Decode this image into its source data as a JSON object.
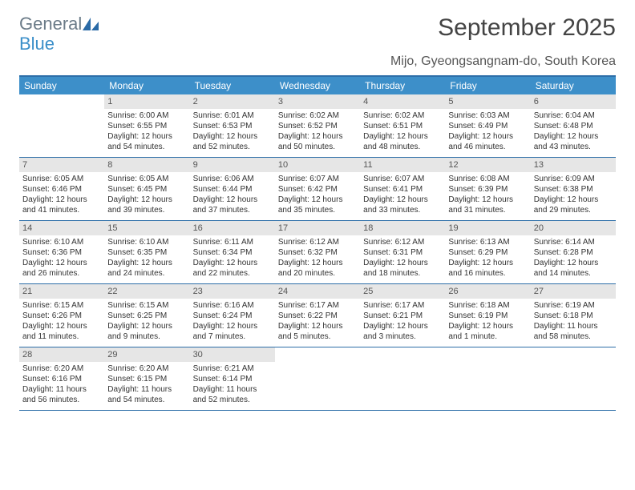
{
  "brand": {
    "word1": "General",
    "word2": "Blue",
    "word1_color": "#6b7b88",
    "word2_color": "#3b8fc9",
    "mark_color": "#2a6aa6"
  },
  "title": "September 2025",
  "subtitle": "Mijo, Gyeongsangnam-do, South Korea",
  "colors": {
    "header_bg": "#3d8fc9",
    "border": "#2d6ea8",
    "daynum_bg": "#e6e6e6",
    "text": "#333333"
  },
  "day_headers": [
    "Sunday",
    "Monday",
    "Tuesday",
    "Wednesday",
    "Thursday",
    "Friday",
    "Saturday"
  ],
  "weeks": [
    [
      {
        "num": "",
        "sunrise": "",
        "sunset": "",
        "daylight": ""
      },
      {
        "num": "1",
        "sunrise": "Sunrise: 6:00 AM",
        "sunset": "Sunset: 6:55 PM",
        "daylight": "Daylight: 12 hours and 54 minutes."
      },
      {
        "num": "2",
        "sunrise": "Sunrise: 6:01 AM",
        "sunset": "Sunset: 6:53 PM",
        "daylight": "Daylight: 12 hours and 52 minutes."
      },
      {
        "num": "3",
        "sunrise": "Sunrise: 6:02 AM",
        "sunset": "Sunset: 6:52 PM",
        "daylight": "Daylight: 12 hours and 50 minutes."
      },
      {
        "num": "4",
        "sunrise": "Sunrise: 6:02 AM",
        "sunset": "Sunset: 6:51 PM",
        "daylight": "Daylight: 12 hours and 48 minutes."
      },
      {
        "num": "5",
        "sunrise": "Sunrise: 6:03 AM",
        "sunset": "Sunset: 6:49 PM",
        "daylight": "Daylight: 12 hours and 46 minutes."
      },
      {
        "num": "6",
        "sunrise": "Sunrise: 6:04 AM",
        "sunset": "Sunset: 6:48 PM",
        "daylight": "Daylight: 12 hours and 43 minutes."
      }
    ],
    [
      {
        "num": "7",
        "sunrise": "Sunrise: 6:05 AM",
        "sunset": "Sunset: 6:46 PM",
        "daylight": "Daylight: 12 hours and 41 minutes."
      },
      {
        "num": "8",
        "sunrise": "Sunrise: 6:05 AM",
        "sunset": "Sunset: 6:45 PM",
        "daylight": "Daylight: 12 hours and 39 minutes."
      },
      {
        "num": "9",
        "sunrise": "Sunrise: 6:06 AM",
        "sunset": "Sunset: 6:44 PM",
        "daylight": "Daylight: 12 hours and 37 minutes."
      },
      {
        "num": "10",
        "sunrise": "Sunrise: 6:07 AM",
        "sunset": "Sunset: 6:42 PM",
        "daylight": "Daylight: 12 hours and 35 minutes."
      },
      {
        "num": "11",
        "sunrise": "Sunrise: 6:07 AM",
        "sunset": "Sunset: 6:41 PM",
        "daylight": "Daylight: 12 hours and 33 minutes."
      },
      {
        "num": "12",
        "sunrise": "Sunrise: 6:08 AM",
        "sunset": "Sunset: 6:39 PM",
        "daylight": "Daylight: 12 hours and 31 minutes."
      },
      {
        "num": "13",
        "sunrise": "Sunrise: 6:09 AM",
        "sunset": "Sunset: 6:38 PM",
        "daylight": "Daylight: 12 hours and 29 minutes."
      }
    ],
    [
      {
        "num": "14",
        "sunrise": "Sunrise: 6:10 AM",
        "sunset": "Sunset: 6:36 PM",
        "daylight": "Daylight: 12 hours and 26 minutes."
      },
      {
        "num": "15",
        "sunrise": "Sunrise: 6:10 AM",
        "sunset": "Sunset: 6:35 PM",
        "daylight": "Daylight: 12 hours and 24 minutes."
      },
      {
        "num": "16",
        "sunrise": "Sunrise: 6:11 AM",
        "sunset": "Sunset: 6:34 PM",
        "daylight": "Daylight: 12 hours and 22 minutes."
      },
      {
        "num": "17",
        "sunrise": "Sunrise: 6:12 AM",
        "sunset": "Sunset: 6:32 PM",
        "daylight": "Daylight: 12 hours and 20 minutes."
      },
      {
        "num": "18",
        "sunrise": "Sunrise: 6:12 AM",
        "sunset": "Sunset: 6:31 PM",
        "daylight": "Daylight: 12 hours and 18 minutes."
      },
      {
        "num": "19",
        "sunrise": "Sunrise: 6:13 AM",
        "sunset": "Sunset: 6:29 PM",
        "daylight": "Daylight: 12 hours and 16 minutes."
      },
      {
        "num": "20",
        "sunrise": "Sunrise: 6:14 AM",
        "sunset": "Sunset: 6:28 PM",
        "daylight": "Daylight: 12 hours and 14 minutes."
      }
    ],
    [
      {
        "num": "21",
        "sunrise": "Sunrise: 6:15 AM",
        "sunset": "Sunset: 6:26 PM",
        "daylight": "Daylight: 12 hours and 11 minutes."
      },
      {
        "num": "22",
        "sunrise": "Sunrise: 6:15 AM",
        "sunset": "Sunset: 6:25 PM",
        "daylight": "Daylight: 12 hours and 9 minutes."
      },
      {
        "num": "23",
        "sunrise": "Sunrise: 6:16 AM",
        "sunset": "Sunset: 6:24 PM",
        "daylight": "Daylight: 12 hours and 7 minutes."
      },
      {
        "num": "24",
        "sunrise": "Sunrise: 6:17 AM",
        "sunset": "Sunset: 6:22 PM",
        "daylight": "Daylight: 12 hours and 5 minutes."
      },
      {
        "num": "25",
        "sunrise": "Sunrise: 6:17 AM",
        "sunset": "Sunset: 6:21 PM",
        "daylight": "Daylight: 12 hours and 3 minutes."
      },
      {
        "num": "26",
        "sunrise": "Sunrise: 6:18 AM",
        "sunset": "Sunset: 6:19 PM",
        "daylight": "Daylight: 12 hours and 1 minute."
      },
      {
        "num": "27",
        "sunrise": "Sunrise: 6:19 AM",
        "sunset": "Sunset: 6:18 PM",
        "daylight": "Daylight: 11 hours and 58 minutes."
      }
    ],
    [
      {
        "num": "28",
        "sunrise": "Sunrise: 6:20 AM",
        "sunset": "Sunset: 6:16 PM",
        "daylight": "Daylight: 11 hours and 56 minutes."
      },
      {
        "num": "29",
        "sunrise": "Sunrise: 6:20 AM",
        "sunset": "Sunset: 6:15 PM",
        "daylight": "Daylight: 11 hours and 54 minutes."
      },
      {
        "num": "30",
        "sunrise": "Sunrise: 6:21 AM",
        "sunset": "Sunset: 6:14 PM",
        "daylight": "Daylight: 11 hours and 52 minutes."
      },
      {
        "num": "",
        "sunrise": "",
        "sunset": "",
        "daylight": ""
      },
      {
        "num": "",
        "sunrise": "",
        "sunset": "",
        "daylight": ""
      },
      {
        "num": "",
        "sunrise": "",
        "sunset": "",
        "daylight": ""
      },
      {
        "num": "",
        "sunrise": "",
        "sunset": "",
        "daylight": ""
      }
    ]
  ]
}
